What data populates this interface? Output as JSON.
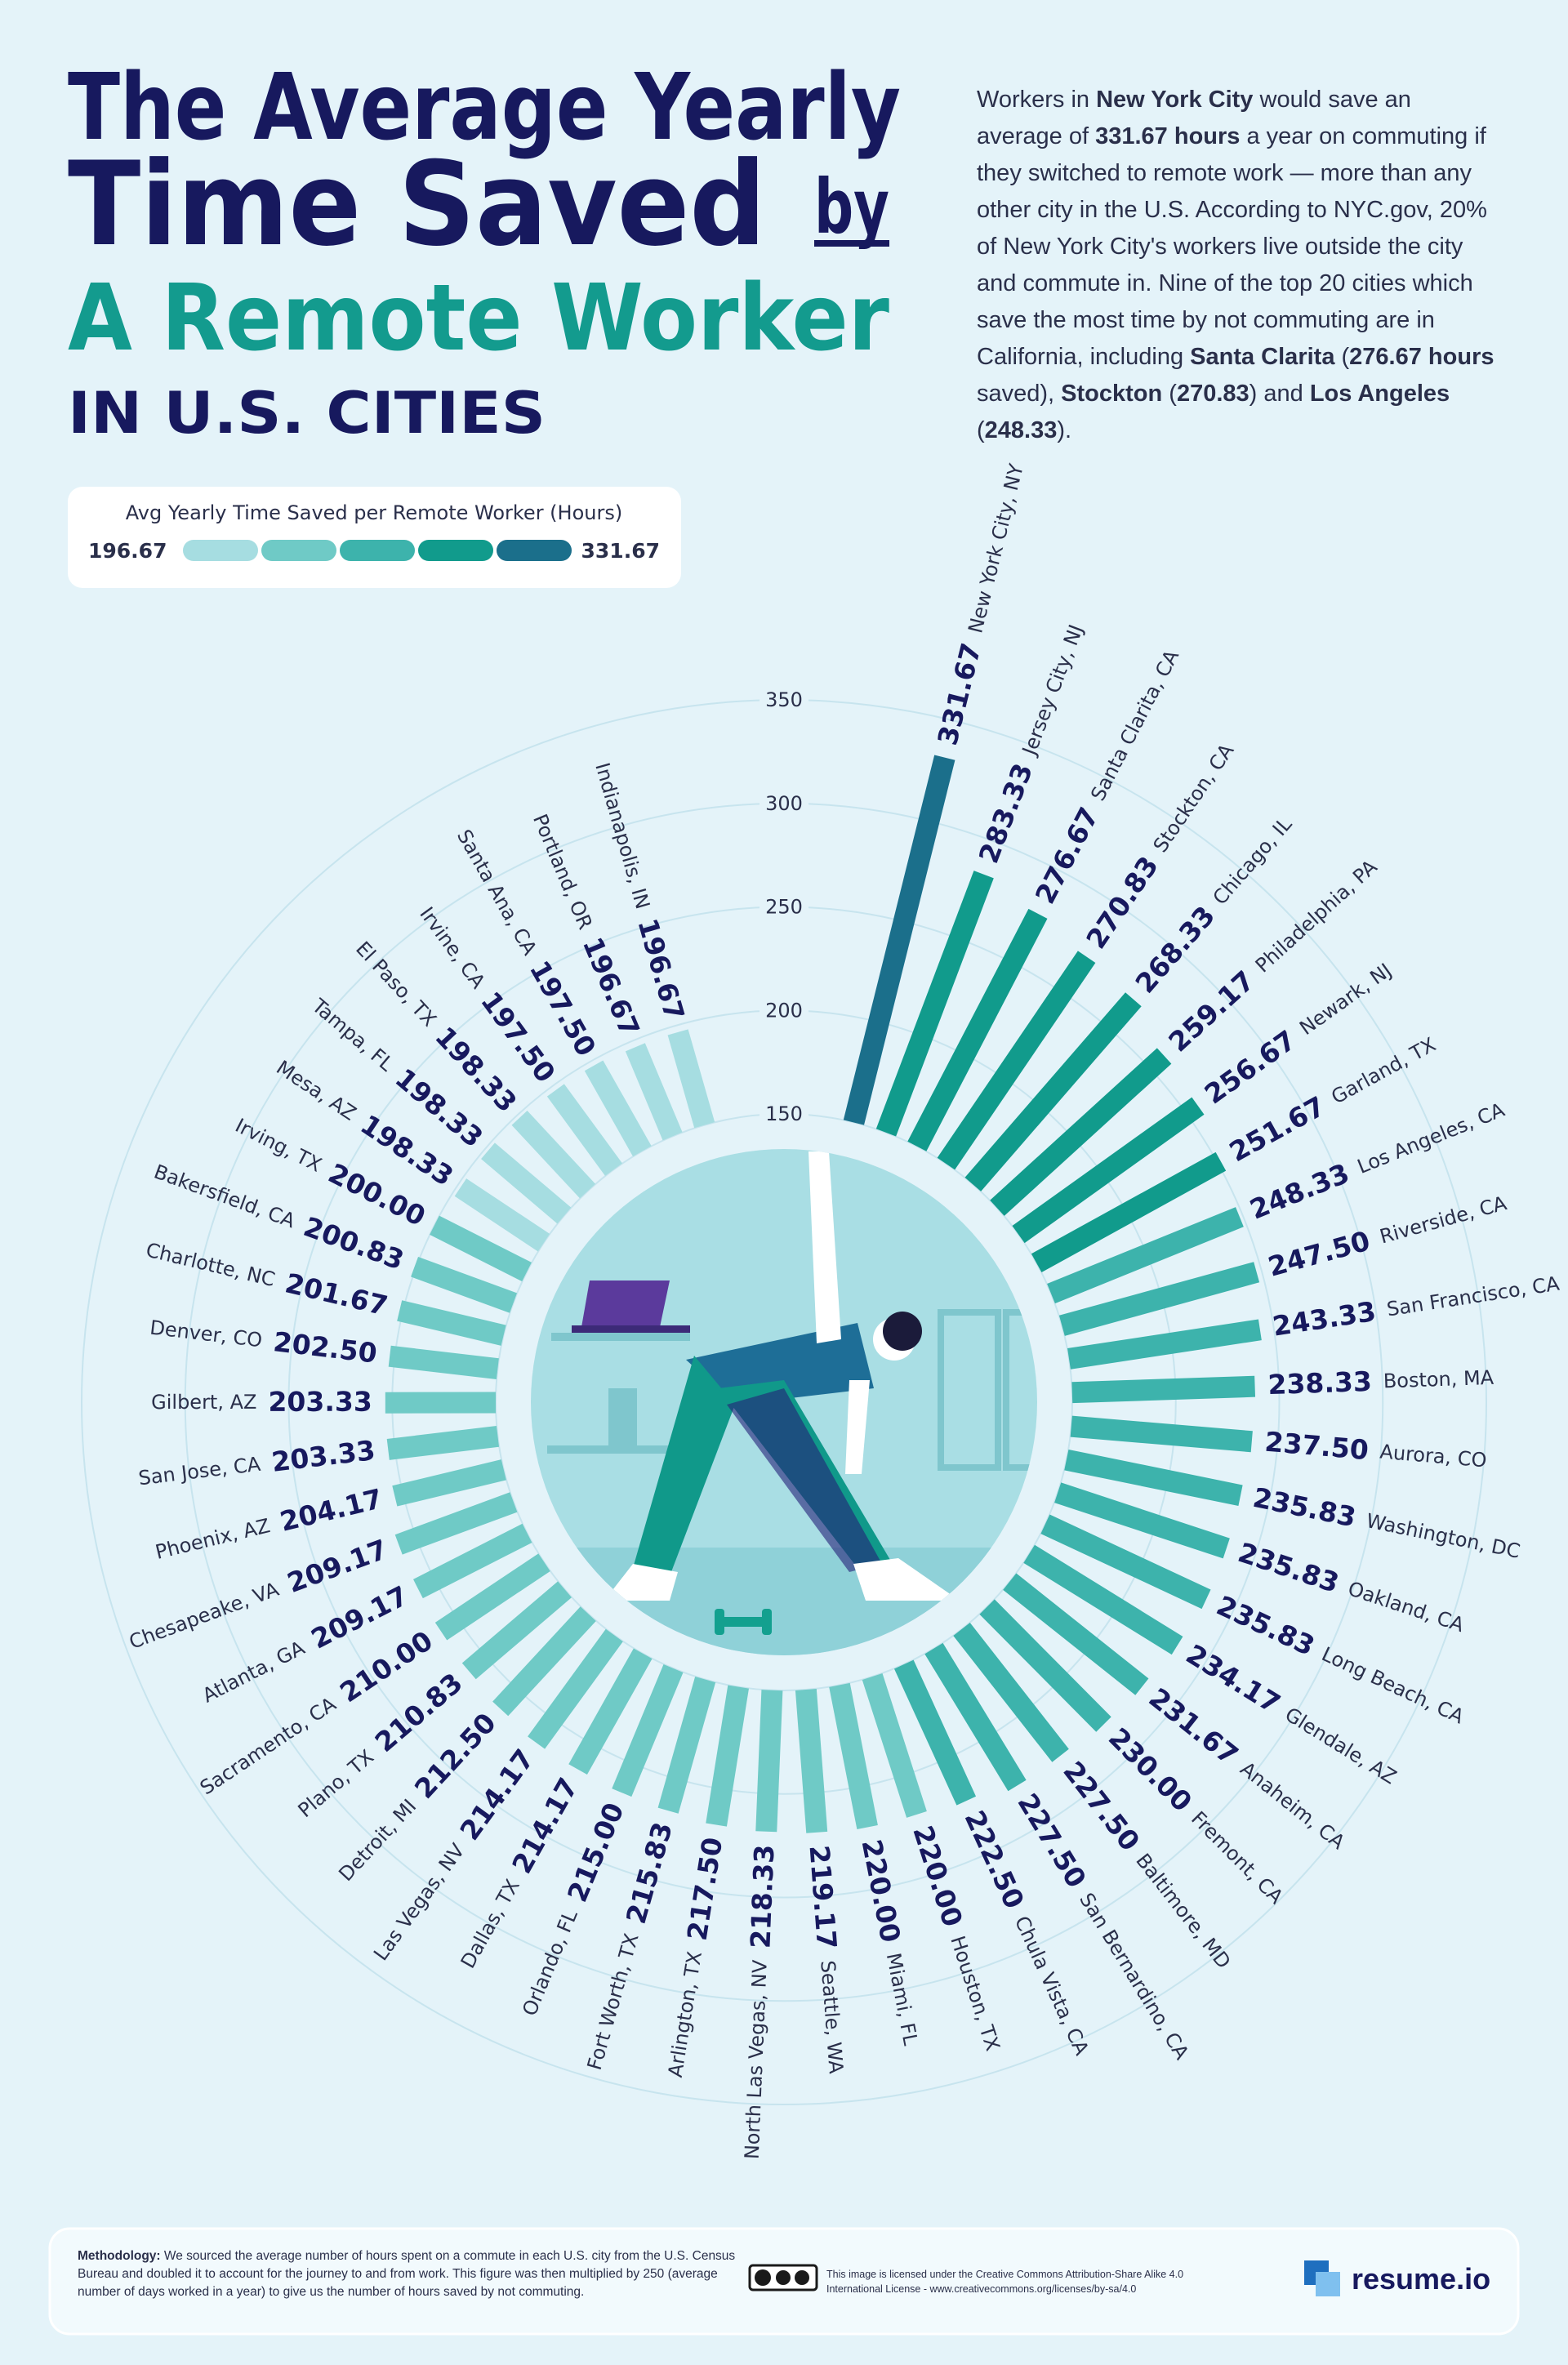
{
  "header": {
    "title_lines": [
      "The Average Yearly",
      "Time Saved",
      "by",
      "A Remote Worker",
      "IN U.S. CITIES"
    ]
  },
  "description": [
    {
      "text": "Workers in ",
      "bold": false
    },
    {
      "text": "New York City",
      "bold": true
    },
    {
      "text": " would save an average of ",
      "bold": false
    },
    {
      "text": "331.67 hours",
      "bold": true
    },
    {
      "text": " a year on commuting if they switched to remote work — more than any other city in the U.S. According to NYC.gov, 20% of New York City's workers live outside the city and commute in. Nine of the top 20 cities which save the most time by not commuting are in California, including ",
      "bold": false
    },
    {
      "text": "Santa Clarita",
      "bold": true
    },
    {
      "text": " (",
      "bold": false
    },
    {
      "text": "276.67 hours",
      "bold": true
    },
    {
      "text": " saved), ",
      "bold": false
    },
    {
      "text": "Stockton",
      "bold": true
    },
    {
      "text": " (",
      "bold": false
    },
    {
      "text": "270.83",
      "bold": true
    },
    {
      "text": ") and ",
      "bold": false
    },
    {
      "text": "Los Angeles",
      "bold": true
    },
    {
      "text": " (",
      "bold": false
    },
    {
      "text": "248.33",
      "bold": true
    },
    {
      "text": ").",
      "bold": false
    }
  ],
  "chart_data": {
    "type": "radial_bar",
    "categories": [
      "New York City, NY",
      "Jersey City, NJ",
      "Santa Clarita, CA",
      "Stockton, CA",
      "Chicago, IL",
      "Philadelphia, PA",
      "Newark, NJ",
      "Garland, TX",
      "Los Angeles, CA",
      "Riverside, CA",
      "San Francisco, CA",
      "Boston, MA",
      "Aurora, CO",
      "Washington, DC",
      "Oakland, CA",
      "Long Beach, CA",
      "Glendale, AZ",
      "Anaheim, CA",
      "Fremont, CA",
      "Baltimore, MD",
      "San Bernardino, CA",
      "Chula Vista, CA",
      "Houston, TX",
      "Miami, FL",
      "Seattle, WA",
      "North Las Vegas, NV",
      "Arlington, TX",
      "Fort Worth, TX",
      "Orlando, FL",
      "Dallas, TX",
      "Las Vegas, NV",
      "Detroit, MI",
      "Plano, TX",
      "Sacramento, CA",
      "Atlanta, GA",
      "Chesapeake, VA",
      "Phoenix, AZ",
      "San Jose, CA",
      "Gilbert, AZ",
      "Denver, CO",
      "Charlotte, NC",
      "Bakersfield, CA",
      "Irving, TX",
      "Mesa, AZ",
      "Tampa, FL",
      "El Paso, TX",
      "Irvine, CA",
      "Santa Ana, CA",
      "Portland, OR",
      "Indianapolis, IN"
    ],
    "values": [
      331.67,
      283.33,
      276.67,
      270.83,
      268.33,
      259.17,
      256.67,
      251.67,
      248.33,
      247.5,
      243.33,
      238.33,
      237.5,
      235.83,
      235.83,
      235.83,
      234.17,
      231.67,
      230,
      227.5,
      227.5,
      222.5,
      220,
      220,
      219.17,
      218.33,
      217.5,
      215.83,
      215,
      214.17,
      214.17,
      212.5,
      210.83,
      210,
      209.17,
      209.17,
      204.17,
      203.33,
      203.33,
      202.5,
      201.67,
      200.83,
      200,
      198.33,
      198.33,
      198.33,
      197.5,
      197.5,
      196.67,
      196.67
    ],
    "value_labels": [
      "331.67",
      "283.33",
      "276.67",
      "270.83",
      "268.33",
      "259.17",
      "256.67",
      "251.67",
      "248.33",
      "247.50",
      "243.33",
      "238.33",
      "237.50",
      "235.83",
      "235.83",
      "235.83",
      "234.17",
      "231.67",
      "230.00",
      "227.50",
      "227.50",
      "222.50",
      "220.00",
      "220.00",
      "219.17",
      "218.33",
      "217.50",
      "215.83",
      "215.00",
      "214.17",
      "214.17",
      "212.50",
      "210.83",
      "210.00",
      "209.17",
      "209.17",
      "204.17",
      "203.33",
      "203.33",
      "202.50",
      "201.67",
      "200.83",
      "200.00",
      "198.33",
      "198.33",
      "198.33",
      "197.50",
      "197.50",
      "196.67",
      "196.67"
    ],
    "colors": [
      "#1b6f8b",
      "#119b8c",
      "#119b8c",
      "#119b8c",
      "#119b8c",
      "#119b8c",
      "#119b8c",
      "#119b8c",
      "#3db3ac",
      "#3db3ac",
      "#3db3ac",
      "#3db3ac",
      "#3db3ac",
      "#3db3ac",
      "#3db3ac",
      "#3db3ac",
      "#3db3ac",
      "#3db3ac",
      "#3db3ac",
      "#3db3ac",
      "#3db3ac",
      "#3db3ac",
      "#6fcac6",
      "#6fcac6",
      "#6fcac6",
      "#6fcac6",
      "#6fcac6",
      "#6fcac6",
      "#6fcac6",
      "#6fcac6",
      "#6fcac6",
      "#6fcac6",
      "#6fcac6",
      "#6fcac6",
      "#6fcac6",
      "#6fcac6",
      "#6fcac6",
      "#6fcac6",
      "#6fcac6",
      "#6fcac6",
      "#6fcac6",
      "#6fcac6",
      "#6fcac6",
      "#a6dde1",
      "#a6dde1",
      "#a6dde1",
      "#a6dde1",
      "#a6dde1",
      "#a6dde1",
      "#a6dde1"
    ],
    "ylim": [
      150,
      350
    ],
    "yticks": [
      150,
      200,
      250,
      300,
      350
    ],
    "grid": true,
    "legend": {
      "title": "Avg Yearly Time Saved per Remote Worker (Hours)",
      "range": [
        196.67,
        331.67
      ],
      "colors": [
        "#a6dde1",
        "#6fcac6",
        "#3db3ac",
        "#119b8c",
        "#1b6f8b"
      ]
    }
  },
  "footer": {
    "methodology_label": "Methodology:",
    "methodology": " We sourced the average number of hours spent on a commute in each U.S. city from the U.S. Census Bureau and doubled it to account for the journey to and from work. This figure was then multiplied by 250 (average number of days worked in a year) to give us the number of hours saved by not commuting.",
    "license": "This image is licensed under the Creative Commons Attribution-Share Alike 4.0 International License - www.creativecommons.org/licenses/by-sa/4.0",
    "brand": "resume.io"
  }
}
